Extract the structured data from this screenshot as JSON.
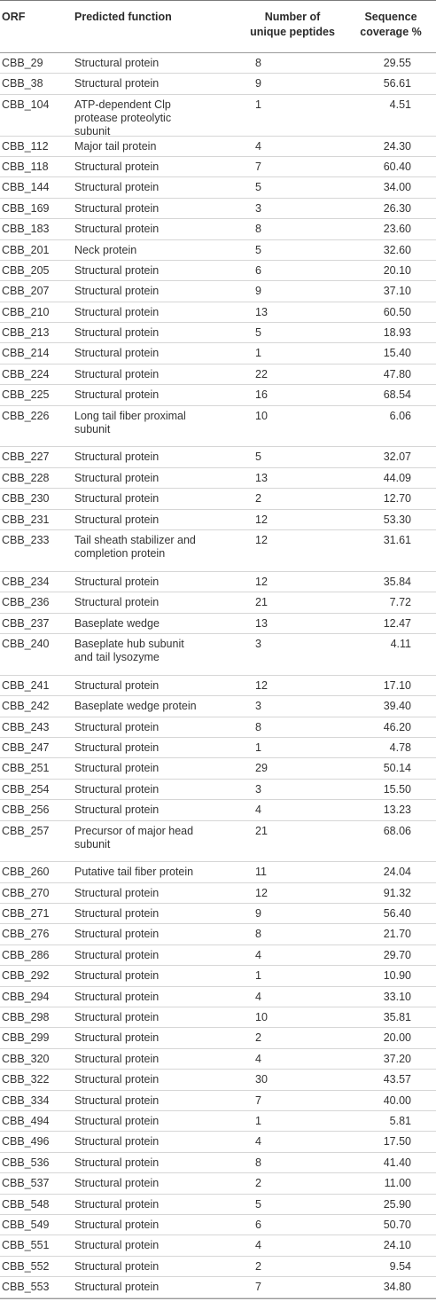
{
  "table": {
    "headers": {
      "orf": "ORF",
      "function": "Predicted function",
      "peptides": [
        "Number of",
        "unique peptides"
      ],
      "coverage": [
        "Sequence",
        "coverage %"
      ]
    },
    "rows": [
      {
        "orf": "CBB_29",
        "function": [
          "Structural protein"
        ],
        "peptides": "8",
        "coverage": "29.55"
      },
      {
        "orf": "CBB_38",
        "function": [
          "Structural protein"
        ],
        "peptides": "9",
        "coverage": "56.61"
      },
      {
        "orf": "CBB_104",
        "function": [
          "ATP-dependent Clp",
          "protease proteolytic",
          "subunit"
        ],
        "peptides": "1",
        "coverage": "4.51"
      },
      {
        "orf": "CBB_112",
        "function": [
          "Major tail protein"
        ],
        "peptides": "4",
        "coverage": "24.30"
      },
      {
        "orf": "CBB_118",
        "function": [
          "Structural protein"
        ],
        "peptides": "7",
        "coverage": "60.40"
      },
      {
        "orf": "CBB_144",
        "function": [
          "Structural protein"
        ],
        "peptides": "5",
        "coverage": "34.00"
      },
      {
        "orf": "CBB_169",
        "function": [
          "Structural protein"
        ],
        "peptides": "3",
        "coverage": "26.30"
      },
      {
        "orf": "CBB_183",
        "function": [
          "Structural protein"
        ],
        "peptides": "8",
        "coverage": "23.60"
      },
      {
        "orf": "CBB_201",
        "function": [
          "Neck protein"
        ],
        "peptides": "5",
        "coverage": "32.60"
      },
      {
        "orf": "CBB_205",
        "function": [
          "Structural protein"
        ],
        "peptides": "6",
        "coverage": "20.10"
      },
      {
        "orf": "CBB_207",
        "function": [
          "Structural protein"
        ],
        "peptides": "9",
        "coverage": "37.10"
      },
      {
        "orf": "CBB_210",
        "function": [
          "Structural protein"
        ],
        "peptides": "13",
        "coverage": "60.50"
      },
      {
        "orf": "CBB_213",
        "function": [
          "Structural protein"
        ],
        "peptides": "5",
        "coverage": "18.93"
      },
      {
        "orf": "CBB_214",
        "function": [
          "Structural protein"
        ],
        "peptides": "1",
        "coverage": "15.40"
      },
      {
        "orf": "CBB_224",
        "function": [
          "Structural protein"
        ],
        "peptides": "22",
        "coverage": "47.80"
      },
      {
        "orf": "CBB_225",
        "function": [
          "Structural protein"
        ],
        "peptides": "16",
        "coverage": "68.54"
      },
      {
        "orf": "CBB_226",
        "function": [
          "Long tail fiber proximal",
          "subunit"
        ],
        "peptides": "10",
        "coverage": "6.06"
      },
      {
        "orf": "CBB_227",
        "function": [
          "Structural protein"
        ],
        "peptides": "5",
        "coverage": "32.07"
      },
      {
        "orf": "CBB_228",
        "function": [
          "Structural protein"
        ],
        "peptides": "13",
        "coverage": "44.09"
      },
      {
        "orf": "CBB_230",
        "function": [
          "Structural protein"
        ],
        "peptides": "2",
        "coverage": "12.70"
      },
      {
        "orf": "CBB_231",
        "function": [
          "Structural protein"
        ],
        "peptides": "12",
        "coverage": "53.30"
      },
      {
        "orf": "CBB_233",
        "function": [
          "Tail sheath stabilizer and",
          "completion protein"
        ],
        "peptides": "12",
        "coverage": "31.61"
      },
      {
        "orf": "CBB_234",
        "function": [
          "Structural protein"
        ],
        "peptides": "12",
        "coverage": "35.84"
      },
      {
        "orf": "CBB_236",
        "function": [
          "Structural protein"
        ],
        "peptides": "21",
        "coverage": "7.72"
      },
      {
        "orf": "CBB_237",
        "function": [
          "Baseplate wedge"
        ],
        "peptides": "13",
        "coverage": "12.47"
      },
      {
        "orf": "CBB_240",
        "function": [
          "Baseplate hub subunit",
          "and tail lysozyme"
        ],
        "peptides": "3",
        "coverage": "4.11"
      },
      {
        "orf": "CBB_241",
        "function": [
          "Structural protein"
        ],
        "peptides": "12",
        "coverage": "17.10"
      },
      {
        "orf": "CBB_242",
        "function": [
          "Baseplate wedge protein"
        ],
        "peptides": "3",
        "coverage": "39.40"
      },
      {
        "orf": "CBB_243",
        "function": [
          "Structural protein"
        ],
        "peptides": "8",
        "coverage": "46.20"
      },
      {
        "orf": "CBB_247",
        "function": [
          "Structural protein"
        ],
        "peptides": "1",
        "coverage": "4.78"
      },
      {
        "orf": "CBB_251",
        "function": [
          "Structural protein"
        ],
        "peptides": "29",
        "coverage": "50.14"
      },
      {
        "orf": "CBB_254",
        "function": [
          "Structural protein"
        ],
        "peptides": "3",
        "coverage": "15.50"
      },
      {
        "orf": "CBB_256",
        "function": [
          "Structural protein"
        ],
        "peptides": "4",
        "coverage": "13.23"
      },
      {
        "orf": "CBB_257",
        "function": [
          "Precursor of major head",
          "subunit"
        ],
        "peptides": "21",
        "coverage": "68.06"
      },
      {
        "orf": "CBB_260",
        "function": [
          "Putative tail fiber protein"
        ],
        "peptides": "11",
        "coverage": "24.04"
      },
      {
        "orf": "CBB_270",
        "function": [
          "Structural protein"
        ],
        "peptides": "12",
        "coverage": "91.32"
      },
      {
        "orf": "CBB_271",
        "function": [
          "Structural protein"
        ],
        "peptides": "9",
        "coverage": "56.40"
      },
      {
        "orf": "CBB_276",
        "function": [
          "Structural protein"
        ],
        "peptides": "8",
        "coverage": "21.70"
      },
      {
        "orf": "CBB_286",
        "function": [
          "Structural protein"
        ],
        "peptides": "4",
        "coverage": "29.70"
      },
      {
        "orf": "CBB_292",
        "function": [
          "Structural protein"
        ],
        "peptides": "1",
        "coverage": "10.90"
      },
      {
        "orf": "CBB_294",
        "function": [
          "Structural protein"
        ],
        "peptides": "4",
        "coverage": "33.10"
      },
      {
        "orf": "CBB_298",
        "function": [
          "Structural protein"
        ],
        "peptides": "10",
        "coverage": "35.81"
      },
      {
        "orf": "CBB_299",
        "function": [
          "Structural protein"
        ],
        "peptides": "2",
        "coverage": "20.00"
      },
      {
        "orf": "CBB_320",
        "function": [
          "Structural protein"
        ],
        "peptides": "4",
        "coverage": "37.20"
      },
      {
        "orf": "CBB_322",
        "function": [
          "Structural protein"
        ],
        "peptides": "30",
        "coverage": "43.57"
      },
      {
        "orf": "CBB_334",
        "function": [
          "Structural protein"
        ],
        "peptides": "7",
        "coverage": "40.00"
      },
      {
        "orf": "CBB_494",
        "function": [
          "Structural protein"
        ],
        "peptides": "1",
        "coverage": "5.81"
      },
      {
        "orf": "CBB_496",
        "function": [
          "Structural protein"
        ],
        "peptides": "4",
        "coverage": "17.50"
      },
      {
        "orf": "CBB_536",
        "function": [
          "Structural protein"
        ],
        "peptides": "8",
        "coverage": "41.40"
      },
      {
        "orf": "CBB_537",
        "function": [
          "Structural protein"
        ],
        "peptides": "2",
        "coverage": "11.00"
      },
      {
        "orf": "CBB_548",
        "function": [
          "Structural protein"
        ],
        "peptides": "5",
        "coverage": "25.90"
      },
      {
        "orf": "CBB_549",
        "function": [
          "Structural protein"
        ],
        "peptides": "6",
        "coverage": "50.70"
      },
      {
        "orf": "CBB_551",
        "function": [
          "Structural protein"
        ],
        "peptides": "4",
        "coverage": "24.10"
      },
      {
        "orf": "CBB_552",
        "function": [
          "Structural protein"
        ],
        "peptides": "2",
        "coverage": "9.54"
      },
      {
        "orf": "CBB_553",
        "function": [
          "Structural protein"
        ],
        "peptides": "7",
        "coverage": "34.80"
      }
    ]
  }
}
